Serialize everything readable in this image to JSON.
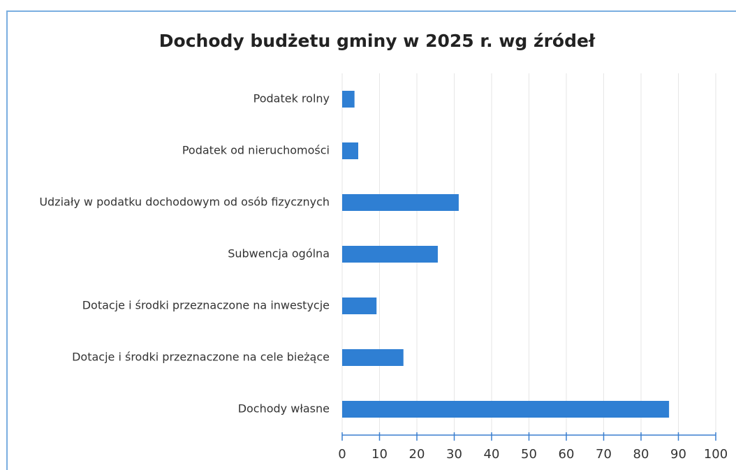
{
  "chart_data": {
    "type": "bar",
    "orientation": "horizontal",
    "title": "Dochody budżetu gminy w 2025 r. wg źródeł",
    "categories": [
      "Podatek rolny",
      "Podatek od nieruchomości",
      "Udziały w podatku dochodowym od osób fizycznych",
      "Subwencja ogólna",
      "Dotacje i środki przeznaczone na inwestycje",
      "Dotacje i środki przeznaczone na cele bieżące",
      "Dochody własne"
    ],
    "values": [
      3.3,
      4.3,
      31.2,
      25.6,
      9.2,
      16.4,
      87.5
    ],
    "color": "#2f7fd3",
    "xlim": [
      0,
      100
    ],
    "xticks": [
      0,
      10,
      20,
      30,
      40,
      50,
      60,
      70,
      80,
      90,
      100
    ],
    "grid": true
  }
}
